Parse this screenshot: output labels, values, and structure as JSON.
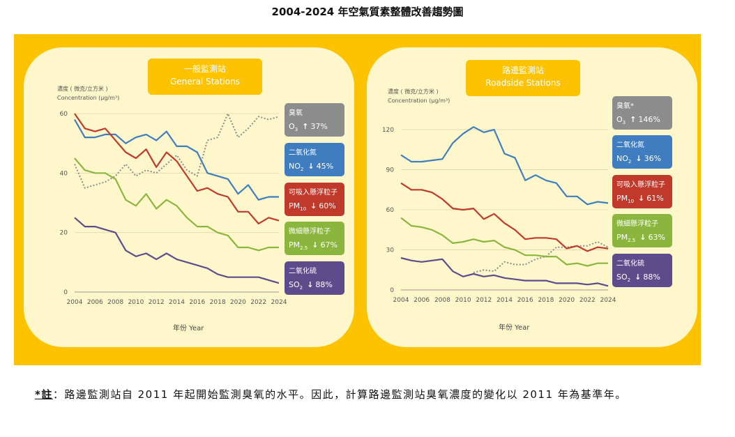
{
  "title": "2004-2024 年空氣質素整體改善趨勢圖",
  "year_axis_label": "年份 Year",
  "conc_label_zh": "濃度 ( 微克/立方米 )",
  "conc_label_en": "Concentration (µg/m³)",
  "footnote": {
    "marker": "*註",
    "text": "：路邊監測站自 2011 年起開始監測臭氧的水平。因此，計算路邊監測站臭氧濃度的變化以 2011 年為基準年。"
  },
  "colors": {
    "banner": "#FDC300",
    "panel": "#FEF7CB",
    "O3": "#8C8C8C",
    "NO2": "#3F7DC0",
    "PM10": "#C0392B",
    "PM2.5": "#8BB63E",
    "SO2": "#5E4B8B"
  },
  "chart_data": [
    {
      "type": "line",
      "station_zh": "一般監測站",
      "station_en": "General Stations",
      "ylabel": "Concentration (µg/m³)",
      "xlabel": "年份 Year",
      "ylim": [
        0,
        60
      ],
      "yticks": [
        0,
        20,
        40,
        60
      ],
      "xticks": [
        2004,
        2006,
        2008,
        2010,
        2012,
        2014,
        2016,
        2018,
        2020,
        2022,
        2024
      ],
      "grid": true,
      "x": [
        2004,
        2005,
        2006,
        2007,
        2008,
        2009,
        2010,
        2011,
        2012,
        2013,
        2014,
        2015,
        2016,
        2017,
        2018,
        2019,
        2020,
        2021,
        2022,
        2023,
        2024
      ],
      "series": [
        {
          "key": "O3",
          "name_zh": "臭氧",
          "name_en": "O3",
          "sub": "",
          "change_arrow": "up",
          "change": "37%",
          "style": "dotted",
          "values": [
            43,
            35,
            36,
            37,
            39,
            43,
            39,
            41,
            40,
            43,
            46,
            41,
            39,
            51,
            52,
            60,
            52,
            55,
            59,
            58,
            59
          ]
        },
        {
          "key": "NO2",
          "name_zh": "二氧化氮",
          "name_en": "NO",
          "sub": "2",
          "change_arrow": "down",
          "change": "45%",
          "style": "solid",
          "values": [
            58,
            52,
            52,
            53,
            53,
            50,
            52,
            53,
            51,
            54,
            49,
            49,
            47,
            40,
            39,
            38,
            33,
            36,
            31,
            32,
            32
          ]
        },
        {
          "key": "PM10",
          "name_zh": "可吸入懸浮粒子",
          "name_en": "PM",
          "sub": "10",
          "change_arrow": "down",
          "change": "60%",
          "style": "solid",
          "values": [
            60,
            55,
            54,
            55,
            51,
            47,
            45,
            48,
            42,
            47,
            44,
            39,
            34,
            35,
            33,
            32,
            27,
            27,
            23,
            25,
            24
          ]
        },
        {
          "key": "PM2.5",
          "name_zh": "微細懸浮粒子",
          "name_en": "PM",
          "sub": "2.5",
          "change_arrow": "down",
          "change": "67%",
          "style": "solid",
          "values": [
            45,
            41,
            40,
            40,
            38,
            31,
            29,
            33,
            28,
            31,
            29,
            25,
            22,
            22,
            20,
            19,
            15,
            15,
            14,
            15,
            15
          ]
        },
        {
          "key": "SO2",
          "name_zh": "二氧化硫",
          "name_en": "SO",
          "sub": "2",
          "change_arrow": "down",
          "change": "88%",
          "style": "solid",
          "values": [
            25,
            22,
            22,
            21,
            20,
            14,
            12,
            13,
            11,
            13,
            11,
            10,
            9,
            8,
            6,
            5,
            5,
            5,
            5,
            4,
            3
          ]
        }
      ]
    },
    {
      "type": "line",
      "station_zh": "路邊監測站",
      "station_en": "Roadside Stations",
      "ylabel": "Concentration (µg/m³)",
      "xlabel": "年份 Year",
      "ylim": [
        0,
        120
      ],
      "yticks": [
        0,
        30,
        60,
        90,
        120
      ],
      "xticks": [
        2004,
        2006,
        2008,
        2010,
        2012,
        2014,
        2016,
        2018,
        2020,
        2022,
        2024
      ],
      "grid": true,
      "x": [
        2004,
        2005,
        2006,
        2007,
        2008,
        2009,
        2010,
        2011,
        2012,
        2013,
        2014,
        2015,
        2016,
        2017,
        2018,
        2019,
        2020,
        2021,
        2022,
        2023,
        2024
      ],
      "series": [
        {
          "key": "O3",
          "name_zh": "臭氧*",
          "name_en": "O3",
          "sub": "",
          "change_arrow": "up",
          "change": "146%",
          "style": "dotted",
          "values": [
            null,
            null,
            null,
            null,
            null,
            null,
            null,
            13,
            15,
            14,
            21,
            19,
            19,
            23,
            25,
            32,
            32,
            33,
            33,
            36,
            32
          ]
        },
        {
          "key": "NO2",
          "name_zh": "二氧化氮",
          "name_en": "NO",
          "sub": "2",
          "change_arrow": "down",
          "change": "36%",
          "style": "solid",
          "values": [
            101,
            96,
            96,
            97,
            98,
            110,
            117,
            122,
            118,
            120,
            102,
            99,
            82,
            86,
            82,
            80,
            70,
            70,
            64,
            66,
            65
          ]
        },
        {
          "key": "PM10",
          "name_zh": "可吸入懸浮粒子",
          "name_en": "PM",
          "sub": "10",
          "change_arrow": "down",
          "change": "61%",
          "style": "solid",
          "values": [
            80,
            75,
            75,
            73,
            68,
            61,
            60,
            61,
            53,
            57,
            50,
            45,
            38,
            39,
            39,
            38,
            31,
            33,
            29,
            32,
            31
          ]
        },
        {
          "key": "PM2.5",
          "name_zh": "微細懸浮粒子",
          "name_en": "PM",
          "sub": "2.5",
          "change_arrow": "down",
          "change": "63%",
          "style": "solid",
          "values": [
            54,
            48,
            47,
            45,
            41,
            35,
            36,
            38,
            36,
            37,
            32,
            30,
            26,
            26,
            25,
            25,
            19,
            20,
            18,
            20,
            20
          ]
        },
        {
          "key": "SO2",
          "name_zh": "二氧化硫",
          "name_en": "SO",
          "sub": "2",
          "change_arrow": "down",
          "change": "88%",
          "style": "solid",
          "values": [
            24,
            22,
            21,
            22,
            23,
            14,
            10,
            12,
            10,
            11,
            9,
            8,
            7,
            7,
            7,
            5,
            5,
            5,
            4,
            5,
            3
          ]
        }
      ]
    }
  ]
}
